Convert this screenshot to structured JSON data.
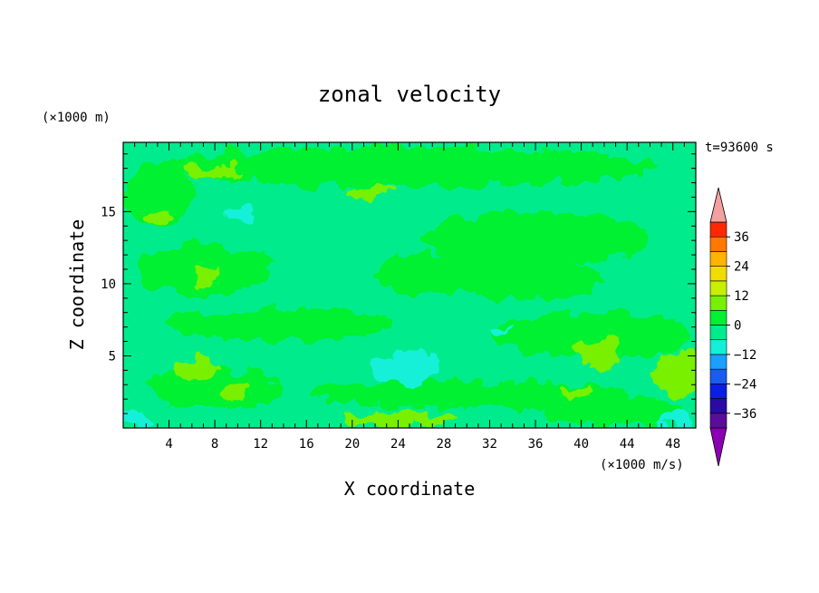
{
  "chart_data": {
    "type": "heatmap",
    "title": "zonal velocity",
    "xlabel": "X coordinate",
    "ylabel": "Z coordinate",
    "y_unit": "(×1000 m)",
    "colorbar_unit": "(×1000 m/s)",
    "time_label": "t=93600 s",
    "xlim": [
      0,
      50
    ],
    "ylim": [
      0,
      19.8
    ],
    "x_ticks": [
      4,
      8,
      12,
      16,
      20,
      24,
      28,
      32,
      36,
      40,
      44,
      48
    ],
    "y_ticks": [
      5,
      10,
      15
    ],
    "colorbar": {
      "levels": [
        -42,
        -36,
        -30,
        -24,
        -18,
        -12,
        -6,
        0,
        6,
        12,
        18,
        24,
        30,
        36,
        42
      ],
      "tick_labels": [
        "36",
        "24",
        "12",
        "0",
        "−12",
        "−24",
        "−36"
      ],
      "colors": [
        "#5a0d9a",
        "#2a0aa6",
        "#0a1ee6",
        "#1a5cf0",
        "#1aa0ff",
        "#14f0d8",
        "#00ec8c",
        "#00f032",
        "#78f000",
        "#c8f000",
        "#f0dc00",
        "#ffb400",
        "#ff7800",
        "#ff2800"
      ],
      "over_color": "#f4a0a0",
      "under_color": "#8c00b4"
    },
    "field_patches": [
      {
        "level": -6,
        "cx": 10,
        "cy": 1.5,
        "rx": 11,
        "ry": 1.8
      },
      {
        "level": -6,
        "cx": 35,
        "cy": 3.2,
        "rx": 16,
        "ry": 2.6
      },
      {
        "level": -6,
        "cx": 16,
        "cy": 9.3,
        "rx": 13,
        "ry": 3.0
      },
      {
        "level": -6,
        "cx": 34,
        "cy": 8.8,
        "rx": 9,
        "ry": 2.2
      },
      {
        "level": -6,
        "cx": 10,
        "cy": 14.6,
        "rx": 10,
        "ry": 2.5
      },
      {
        "level": -6,
        "cx": 27,
        "cy": 14.2,
        "rx": 10,
        "ry": 2.9
      },
      {
        "level": -6,
        "cx": 44,
        "cy": 11.4,
        "rx": 8,
        "ry": 2.6
      },
      {
        "level": -6,
        "cx": 42,
        "cy": 17.5,
        "rx": 8,
        "ry": 1.4
      },
      {
        "level": -6,
        "cx": 5,
        "cy": 5.6,
        "rx": 6,
        "ry": 2.1
      },
      {
        "level": 0,
        "cx": 36,
        "cy": 13.1,
        "rx": 10,
        "ry": 1.9
      },
      {
        "level": 0,
        "cx": 35,
        "cy": 10.2,
        "rx": 7,
        "ry": 1.3
      },
      {
        "level": 0,
        "cx": 28,
        "cy": 10.6,
        "rx": 6,
        "ry": 1.4
      },
      {
        "level": 0,
        "cx": 25,
        "cy": 18.1,
        "rx": 22,
        "ry": 1.4
      },
      {
        "level": 0,
        "cx": 7,
        "cy": 11.0,
        "rx": 6,
        "ry": 1.8
      },
      {
        "level": 0,
        "cx": 14,
        "cy": 7.2,
        "rx": 10,
        "ry": 1.1
      },
      {
        "level": 0,
        "cx": 41,
        "cy": 6.5,
        "rx": 9,
        "ry": 1.5
      },
      {
        "level": 0,
        "cx": 30,
        "cy": 2.3,
        "rx": 14,
        "ry": 0.9
      },
      {
        "level": 0,
        "cx": 43,
        "cy": 1.2,
        "rx": 6,
        "ry": 1.0
      },
      {
        "level": 0,
        "cx": 8,
        "cy": 2.7,
        "rx": 6,
        "ry": 1.4
      },
      {
        "level": 0,
        "cx": 3,
        "cy": 16.2,
        "rx": 3,
        "ry": 2.2
      },
      {
        "level": 6,
        "cx": 8,
        "cy": 17.8,
        "rx": 2.8,
        "ry": 0.5
      },
      {
        "level": 6,
        "cx": 21.5,
        "cy": 16.3,
        "rx": 2.2,
        "ry": 0.4
      },
      {
        "level": 6,
        "cx": 2.8,
        "cy": 14.5,
        "rx": 1.2,
        "ry": 0.4
      },
      {
        "level": 6,
        "cx": 7.2,
        "cy": 10.4,
        "rx": 1.2,
        "ry": 0.5
      },
      {
        "level": 6,
        "cx": 6.5,
        "cy": 4.1,
        "rx": 1.6,
        "ry": 0.8
      },
      {
        "level": 6,
        "cx": 9.7,
        "cy": 2.5,
        "rx": 1.2,
        "ry": 0.6
      },
      {
        "level": 6,
        "cx": 41.5,
        "cy": 5.2,
        "rx": 2.0,
        "ry": 1.0
      },
      {
        "level": 6,
        "cx": 48.5,
        "cy": 3.8,
        "rx": 2.3,
        "ry": 1.6
      },
      {
        "level": 6,
        "cx": 24,
        "cy": 0.6,
        "rx": 5,
        "ry": 0.5
      },
      {
        "level": 6,
        "cx": 39.5,
        "cy": 2.4,
        "rx": 1.3,
        "ry": 0.4
      },
      {
        "level": -12,
        "cx": 24.5,
        "cy": 4.1,
        "rx": 3.0,
        "ry": 1.1
      },
      {
        "level": -12,
        "cx": 10,
        "cy": 14.8,
        "rx": 1.6,
        "ry": 0.4
      },
      {
        "level": -12,
        "cx": 1,
        "cy": 0.6,
        "rx": 1.4,
        "ry": 0.5
      },
      {
        "level": -12,
        "cx": 48.5,
        "cy": 0.6,
        "rx": 1.6,
        "ry": 0.5
      },
      {
        "level": -12,
        "cx": 33,
        "cy": 6.8,
        "rx": 0.8,
        "ry": 0.3
      }
    ]
  }
}
